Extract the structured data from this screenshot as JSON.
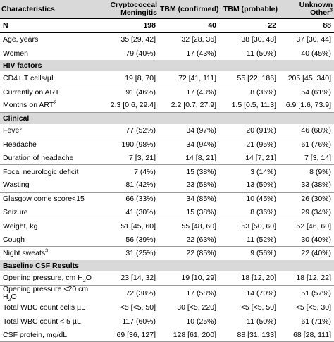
{
  "header": {
    "characteristics": "Characteristics",
    "crypto_line1": "Cryptococcal",
    "crypto_line2": "Meningitis",
    "tbm_confirmed": "TBM (confirmed)",
    "tbm_probable": "TBM (probable)",
    "unknown_line1": "Unknown",
    "unknown_line2": "Other",
    "unknown_sup": "3"
  },
  "n_row": {
    "label": "N",
    "values": [
      "198",
      "40",
      "22",
      "88"
    ]
  },
  "rows_general": [
    {
      "label": "Age, years",
      "values": [
        "35 [29, 42]",
        "32 [28, 36]",
        "38 [30, 48]",
        "37 [30, 44]"
      ]
    },
    {
      "label": "Women",
      "values": [
        "79 (40%)",
        "17 (43%)",
        "11 (50%)",
        "40 (45%)"
      ]
    }
  ],
  "sections": {
    "hiv": "HIV factors",
    "clinical": "Clinical",
    "csf": "Baseline CSF Results"
  },
  "rows_hiv": [
    {
      "label_pre": "CD4+ T cells/µL",
      "sup": "",
      "values": [
        "19 [8, 70]",
        "72 [41, 111]",
        "55 [22, 186]",
        "205 [45, 340]"
      ]
    },
    {
      "label_pre": "Currently on ART",
      "sup": "",
      "values": [
        "91 (46%)",
        "17 (43%)",
        "8 (36%)",
        "54 (61%)"
      ]
    },
    {
      "label_pre": "Months on ART",
      "sup": "2",
      "values": [
        "2.3 [0.6, 29.4]",
        "2.2 [0.7, 27.9]",
        "1.5 [0.5, 11.3]",
        "6.9 [1.6, 73.9]"
      ]
    }
  ],
  "rows_clinical": [
    {
      "label_pre": "Fever",
      "sup": "",
      "values": [
        "77 (52%)",
        "34 (97%)",
        "20 (91%)",
        "46 (68%)"
      ]
    },
    {
      "label_pre": "Headache",
      "sup": "",
      "values": [
        "190 (98%)",
        "34 (94%)",
        "21 (95%)",
        "61 (76%)"
      ]
    },
    {
      "label_pre": "Duration of headache",
      "sup": "",
      "values": [
        "7 [3, 21]",
        "14 [8, 21]",
        "14 [7, 21]",
        "7 [3, 14]"
      ]
    },
    {
      "label_pre": "Focal neurologic deficit",
      "sup": "",
      "values": [
        "7 (4%)",
        "15 (38%)",
        "3 (14%)",
        "8 (9%)"
      ]
    },
    {
      "label_pre": "Wasting",
      "sup": "",
      "values": [
        "81 (42%)",
        "23 (58%)",
        "13 (59%)",
        "33 (38%)"
      ]
    },
    {
      "label_pre": "Glasgow come score<15",
      "sup": "",
      "values": [
        "66 (33%)",
        "34 (85%)",
        "10 (45%)",
        "26 (30%)"
      ]
    },
    {
      "label_pre": "Seizure",
      "sup": "",
      "values": [
        "41 (30%)",
        "15 (38%)",
        "8 (36%)",
        "29 (34%)"
      ]
    },
    {
      "label_pre": "Weight, kg",
      "sup": "",
      "values": [
        "51 [45, 60]",
        "55 [48, 60]",
        "53 [50, 60]",
        "52 [46, 60]"
      ]
    },
    {
      "label_pre": "Cough",
      "sup": "",
      "values": [
        "56 (39%)",
        "22 (63%)",
        "11 (52%)",
        "30 (40%)"
      ]
    },
    {
      "label_pre": "Night sweats",
      "sup": "3",
      "values": [
        "31 (25%)",
        "22 (85%)",
        "9 (56%)",
        "22 (40%)"
      ]
    }
  ],
  "rows_csf": [
    {
      "label_pre": "Opening pressure, cm H",
      "sub": "2",
      "label_post": "O",
      "values": [
        "23 [14, 32]",
        "19 [10, 29]",
        "18 [12, 20]",
        "18 [12, 22]"
      ]
    },
    {
      "label_pre": "Opening pressure <20 cm H",
      "sub": "2",
      "label_post": "O",
      "values": [
        "72 (38%)",
        "17 (58%)",
        "14 (70%)",
        "51 (57%)"
      ]
    },
    {
      "label_pre": "Total WBC count cells µL",
      "sub": "",
      "label_post": "",
      "values": [
        "<5 [<5, 50]",
        "30 [<5, 220]",
        "<5 [<5, 50]",
        "<5 [<5, 30]"
      ]
    },
    {
      "label_pre": "Total WBC count < 5 µL",
      "sub": "",
      "label_post": "",
      "values": [
        "117 (60%)",
        "10 (25%)",
        "11 (50%)",
        "61 (71%)"
      ]
    },
    {
      "label_pre": "CSF protein, mg/dL",
      "sub": "",
      "label_post": "",
      "values": [
        "69 [36, 127]",
        "128 [61, 200]",
        "88 [31, 133]",
        "68 [28, 111]"
      ]
    }
  ]
}
